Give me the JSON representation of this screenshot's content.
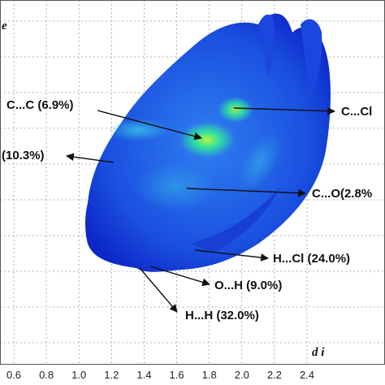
{
  "chart_data": {
    "type": "scatter",
    "title": "",
    "x_axis": {
      "label": "d i",
      "range": [
        0.6,
        2.4
      ],
      "ticks": [
        "0.6",
        "0.8",
        "1.0",
        "1.2",
        "1.4",
        "1.6",
        "1.8",
        "2.0",
        "2.2",
        "2.4"
      ]
    },
    "y_axis": {
      "label": "e",
      "ticks": []
    },
    "grid": true,
    "colors": {
      "low": "#1033d8",
      "mid": "#2b8cf0",
      "high": "#28e09a",
      "peak": "#a0f040",
      "arrow": "#111111",
      "grid": "#9a9a9a"
    },
    "annotations": [
      {
        "label": "C...C (6.9%)"
      },
      {
        "label": "C...Cl"
      },
      {
        "label": "(10.3%)"
      },
      {
        "label": "C...O(2.8%"
      },
      {
        "label": "H...Cl (24.0%)"
      },
      {
        "label": "O...H (9.0%)"
      },
      {
        "label": "H...H (32.0%)"
      }
    ]
  }
}
